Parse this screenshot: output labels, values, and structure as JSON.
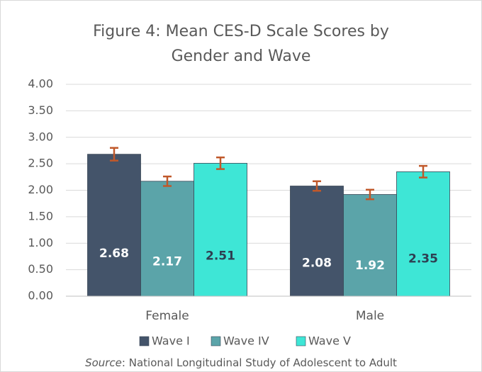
{
  "chart_data": {
    "type": "bar",
    "title": [
      "Figure 4: Mean CES-D Scale Scores by",
      "Gender and Wave"
    ],
    "categories": [
      "Female",
      "Male"
    ],
    "series": [
      {
        "name": "Wave I",
        "color": "#44546a",
        "label_color": "#ffffff",
        "values": [
          2.68,
          2.08
        ],
        "errors": [
          0.12,
          0.09
        ]
      },
      {
        "name": "Wave IV",
        "color": "#5ba4a9",
        "label_color": "#ffffff",
        "values": [
          2.17,
          1.92
        ],
        "errors": [
          0.09,
          0.09
        ]
      },
      {
        "name": "Wave V",
        "color": "#3ee6d6",
        "label_color": "#2e3f52",
        "values": [
          2.51,
          2.35
        ],
        "errors": [
          0.11,
          0.11
        ]
      }
    ],
    "error_color": "#c0582a",
    "ylim": [
      0,
      4
    ],
    "yticks": [
      {
        "value": 0,
        "label": "0.00"
      },
      {
        "value": 0.5,
        "label": "0.50"
      },
      {
        "value": 1,
        "label": "1.00"
      },
      {
        "value": 1.5,
        "label": "1.50"
      },
      {
        "value": 2,
        "label": "2.00"
      },
      {
        "value": 2.5,
        "label": "2.50"
      },
      {
        "value": 3,
        "label": "3.00"
      },
      {
        "value": 3.5,
        "label": "3.50"
      },
      {
        "value": 4,
        "label": "4.00"
      }
    ],
    "grid": true,
    "legend": "bottom",
    "source_label": "Source",
    "source": ": National Longitudinal Study of Adolescent to Adult"
  }
}
